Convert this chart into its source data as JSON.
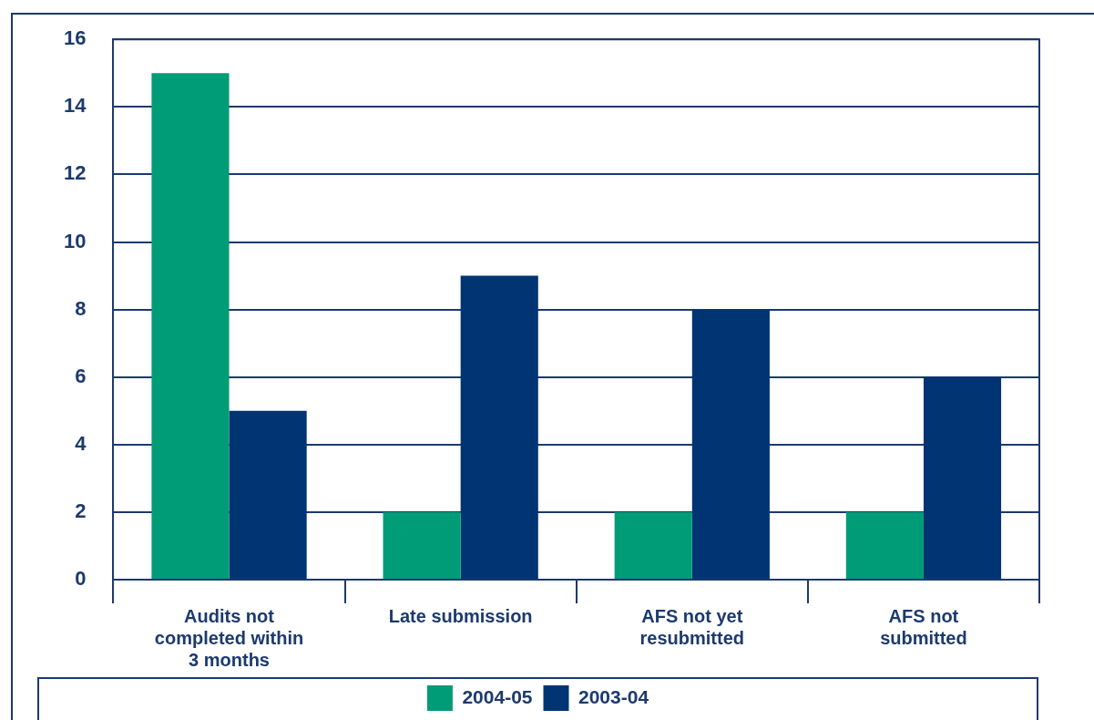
{
  "chart_data": {
    "type": "bar",
    "categories": [
      "Audits not completed within 3 months",
      "Late submission",
      "AFS not yet resubmitted",
      "AFS not submitted"
    ],
    "series": [
      {
        "name": "2004-05",
        "color": "#009b77",
        "values": [
          15,
          2,
          2,
          2
        ]
      },
      {
        "name": "2003-04",
        "color": "#003473",
        "values": [
          5,
          9,
          8,
          6
        ]
      }
    ],
    "ylim": [
      0,
      16
    ],
    "yticks": [
      0,
      2,
      4,
      6,
      8,
      10,
      12,
      14,
      16
    ],
    "grid": "y",
    "legend": "bottom"
  }
}
